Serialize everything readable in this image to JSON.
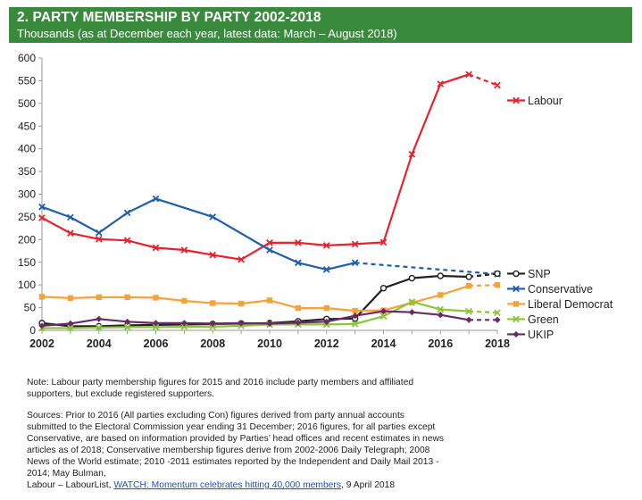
{
  "header": {
    "title": "2. PARTY MEMBERSHIP BY PARTY 2002-2018",
    "subtitle": "Thousands (as at December each year, latest data: March – August 2018)"
  },
  "colors": {
    "header_bg": "#3a8a3e",
    "labour": "#e8212d",
    "conservative": "#1f5fa8",
    "snp": "#222222",
    "libdem": "#f7a13a",
    "green": "#8cc43c",
    "ukip": "#6b2a66"
  },
  "chart_data": {
    "type": "line",
    "title": "2. PARTY MEMBERSHIP BY PARTY 2002-2018",
    "subtitle": "Thousands (as at December each year, latest data: March – August 2018)",
    "xlabel": "",
    "ylabel": "",
    "xlim": [
      2002,
      2018
    ],
    "ylim": [
      0,
      600
    ],
    "x_ticks": [
      2002,
      2004,
      2006,
      2008,
      2010,
      2012,
      2014,
      2016,
      2018
    ],
    "y_ticks": [
      0,
      50,
      100,
      150,
      200,
      250,
      300,
      350,
      400,
      450,
      500,
      550,
      600
    ],
    "grid": false,
    "legend": "right",
    "series": [
      {
        "name": "Labour",
        "color": "#e8212d",
        "marker": "x",
        "points": [
          [
            2002,
            248
          ],
          [
            2003,
            214
          ],
          [
            2004,
            201
          ],
          [
            2005,
            198
          ],
          [
            2006,
            182
          ],
          [
            2007,
            177
          ],
          [
            2008,
            166
          ],
          [
            2009,
            156
          ],
          [
            2010,
            193
          ],
          [
            2011,
            193
          ],
          [
            2012,
            187
          ],
          [
            2013,
            190
          ],
          [
            2014,
            194
          ],
          [
            2015,
            388
          ],
          [
            2016,
            543
          ],
          [
            2017,
            564
          ]
        ],
        "dashed_points": [
          [
            2017,
            564
          ],
          [
            2018,
            540
          ]
        ]
      },
      {
        "name": "Conservative",
        "color": "#1f5fa8",
        "marker": "x",
        "points": [
          [
            2002,
            272
          ],
          [
            2003,
            249
          ],
          [
            2004,
            215
          ],
          [
            2005,
            259
          ],
          [
            2006,
            290
          ],
          [
            2008,
            250
          ],
          [
            2010,
            177
          ],
          [
            2011,
            149
          ],
          [
            2012,
            134
          ],
          [
            2013,
            149
          ]
        ],
        "dashed_points": [
          [
            2013,
            149
          ],
          [
            2018,
            124
          ]
        ]
      },
      {
        "name": "SNP",
        "color": "#222222",
        "marker": "o",
        "points": [
          [
            2002,
            16
          ],
          [
            2003,
            9
          ],
          [
            2004,
            9
          ],
          [
            2005,
            11
          ],
          [
            2006,
            12
          ],
          [
            2007,
            13
          ],
          [
            2008,
            14
          ],
          [
            2009,
            15
          ],
          [
            2010,
            16
          ],
          [
            2011,
            20
          ],
          [
            2012,
            25
          ],
          [
            2013,
            26
          ],
          [
            2014,
            93
          ],
          [
            2015,
            115
          ],
          [
            2016,
            120
          ],
          [
            2017,
            118
          ]
        ],
        "dashed_points": [
          [
            2017,
            118
          ],
          [
            2018,
            125
          ]
        ]
      },
      {
        "name": "Liberal Democrat",
        "color": "#f7a13a",
        "marker": "s",
        "points": [
          [
            2002,
            74
          ],
          [
            2003,
            71
          ],
          [
            2004,
            73
          ],
          [
            2005,
            73
          ],
          [
            2006,
            72
          ],
          [
            2007,
            65
          ],
          [
            2008,
            60
          ],
          [
            2009,
            59
          ],
          [
            2010,
            66
          ],
          [
            2011,
            49
          ],
          [
            2012,
            49
          ],
          [
            2013,
            43
          ],
          [
            2014,
            44
          ],
          [
            2015,
            61
          ],
          [
            2016,
            78
          ],
          [
            2017,
            98
          ]
        ],
        "dashed_points": [
          [
            2017,
            98
          ],
          [
            2018,
            100
          ]
        ]
      },
      {
        "name": "Green",
        "color": "#8cc43c",
        "marker": "x",
        "points": [
          [
            2002,
            5
          ],
          [
            2003,
            5
          ],
          [
            2004,
            6
          ],
          [
            2005,
            7
          ],
          [
            2006,
            7
          ],
          [
            2007,
            8
          ],
          [
            2008,
            8
          ],
          [
            2009,
            10
          ],
          [
            2010,
            13
          ],
          [
            2011,
            13
          ],
          [
            2012,
            13
          ],
          [
            2013,
            14
          ],
          [
            2014,
            31
          ],
          [
            2015,
            63
          ],
          [
            2016,
            46
          ],
          [
            2017,
            42
          ]
        ],
        "dashed_points": [
          [
            2017,
            42
          ],
          [
            2018,
            39
          ]
        ]
      },
      {
        "name": "UKIP",
        "color": "#6b2a66",
        "marker": "d",
        "points": [
          [
            2002,
            10
          ],
          [
            2003,
            15
          ],
          [
            2004,
            25
          ],
          [
            2005,
            19
          ],
          [
            2006,
            16
          ],
          [
            2007,
            16
          ],
          [
            2008,
            15
          ],
          [
            2009,
            16
          ],
          [
            2010,
            15
          ],
          [
            2011,
            17
          ],
          [
            2012,
            19
          ],
          [
            2013,
            32
          ],
          [
            2014,
            42
          ],
          [
            2015,
            40
          ],
          [
            2016,
            34
          ],
          [
            2017,
            23
          ]
        ],
        "dashed_points": [
          [
            2017,
            23
          ],
          [
            2018,
            23
          ]
        ]
      }
    ]
  },
  "notes": {
    "note": "Note: Labour party membership figures for 2015 and 2016 include party members and affiliated supporters, but exclude registered supporters.",
    "sources_text": "Sources: Prior to 2016 (All parties excluding Con) figures derived from party annual accounts submitted to the Electoral Commission year ending 31 December; 2016 figures, for all parties except Conservative, are based on information provided by Parties’ head offices and recent estimates in news articles as of 2018; Conservative membership figures derive from 2002-2006 Daily Telegraph; 2008 News of the World estimate; 2010 -2011 estimates reported by the Independent and Daily Mail 2013 - 2014; May Bulman,",
    "sources_prefix": "Labour – LabourList, ",
    "sources_link": "WATCH: Momentum celebrates hitting 40,000 members",
    "sources_suffix": ", 9 April 2018"
  }
}
